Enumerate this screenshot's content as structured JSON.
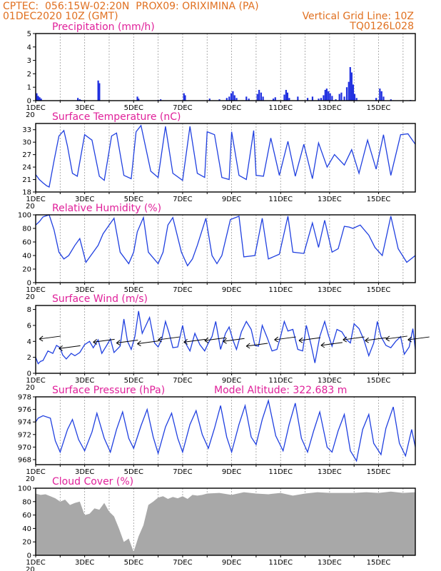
{
  "header": {
    "line1_left": "CPTEC:  056:15W-02:20N  PROX09: ORIXIMINA (PA)",
    "line2_left": "01DEC2020 10Z (GMT)",
    "line2_right": "Vertical Grid Line: 10Z",
    "line3_right": "TQ0126L028"
  },
  "colors": {
    "title": "#e0209a",
    "header": "#e07020",
    "series": "#2040e0",
    "cloud": "#a8a8a8"
  },
  "x_axis": {
    "day_labels": [
      "1DEC",
      "3DEC",
      "5DEC",
      "7DEC",
      "9DEC",
      "11DEC",
      "13DEC",
      "15DEC"
    ],
    "year_fragment": "20",
    "range_days": [
      0,
      15.5
    ]
  },
  "chart_data": [
    {
      "type": "bar",
      "title": "Precipitation  (mm/h)",
      "ylim": [
        0,
        5
      ],
      "yticks": [
        "0",
        "1",
        "2",
        "3",
        "4",
        "5"
      ],
      "bars": [
        [
          0.04,
          0.55
        ],
        [
          0.1,
          0.35
        ],
        [
          0.16,
          0.25
        ],
        [
          0.22,
          0.15
        ],
        [
          1.72,
          0.2
        ],
        [
          1.8,
          0.1
        ],
        [
          1.85,
          0.05
        ],
        [
          2.55,
          1.5
        ],
        [
          2.6,
          1.3
        ],
        [
          4.15,
          0.3
        ],
        [
          4.2,
          0.15
        ],
        [
          5.0,
          0.05
        ],
        [
          5.1,
          0.1
        ],
        [
          6.05,
          0.55
        ],
        [
          6.1,
          0.4
        ],
        [
          7.1,
          0.15
        ],
        [
          7.5,
          0.1
        ],
        [
          7.8,
          0.2
        ],
        [
          7.9,
          0.3
        ],
        [
          7.98,
          0.55
        ],
        [
          8.05,
          0.7
        ],
        [
          8.12,
          0.4
        ],
        [
          8.2,
          0.2
        ],
        [
          8.6,
          0.3
        ],
        [
          8.7,
          0.15
        ],
        [
          9.05,
          0.5
        ],
        [
          9.12,
          0.8
        ],
        [
          9.2,
          0.6
        ],
        [
          9.28,
          0.3
        ],
        [
          9.7,
          0.15
        ],
        [
          9.78,
          0.25
        ],
        [
          10.15,
          0.45
        ],
        [
          10.22,
          0.8
        ],
        [
          10.28,
          0.6
        ],
        [
          10.35,
          0.2
        ],
        [
          10.7,
          0.3
        ],
        [
          11.1,
          0.2
        ],
        [
          11.3,
          0.3
        ],
        [
          11.55,
          0.15
        ],
        [
          11.65,
          0.2
        ],
        [
          11.75,
          0.4
        ],
        [
          11.82,
          0.8
        ],
        [
          11.88,
          0.9
        ],
        [
          11.95,
          0.7
        ],
        [
          12.02,
          0.55
        ],
        [
          12.1,
          0.35
        ],
        [
          12.25,
          0.1
        ],
        [
          12.4,
          0.5
        ],
        [
          12.48,
          0.6
        ],
        [
          12.6,
          0.3
        ],
        [
          12.7,
          1.0
        ],
        [
          12.78,
          1.4
        ],
        [
          12.84,
          2.5
        ],
        [
          12.9,
          2.1
        ],
        [
          12.96,
          1.2
        ],
        [
          13.02,
          0.5
        ],
        [
          13.1,
          0.2
        ],
        [
          13.9,
          0.2
        ],
        [
          14.05,
          0.9
        ],
        [
          14.12,
          0.7
        ],
        [
          14.2,
          0.3
        ],
        [
          14.5,
          0.1
        ],
        [
          15.3,
          0.05
        ]
      ]
    },
    {
      "type": "line",
      "title": "Surface Temperature (nC)",
      "ylim": [
        18,
        34.5
      ],
      "yticks": [
        "18",
        "21",
        "24",
        "27",
        "30",
        "33"
      ],
      "x": [
        0.0,
        0.15,
        0.3,
        0.45,
        0.55,
        0.75,
        0.95,
        1.15,
        1.3,
        1.5,
        1.7,
        2.0,
        2.3,
        2.6,
        2.8,
        3.1,
        3.3,
        3.6,
        3.9,
        4.1,
        4.3,
        4.7,
        5.0,
        5.3,
        5.6,
        6.0,
        6.3,
        6.6,
        6.9,
        7.0,
        7.3,
        7.6,
        7.9,
        8.0,
        8.3,
        8.6,
        8.9,
        9.0,
        9.3,
        9.6,
        9.95,
        10.3,
        10.6,
        10.95,
        11.3,
        11.55,
        11.9,
        12.2,
        12.6,
        12.9,
        13.2,
        13.55,
        13.9,
        14.2,
        14.5,
        14.9,
        15.2,
        15.5
      ],
      "y": [
        22.2,
        21.0,
        20.2,
        19.5,
        19.2,
        25.5,
        31.5,
        32.8,
        29.0,
        22.5,
        21.8,
        31.8,
        30.5,
        21.8,
        20.8,
        31.5,
        32.2,
        22.0,
        21.2,
        32.5,
        34.0,
        23.0,
        21.5,
        33.8,
        22.5,
        20.8,
        33.8,
        22.5,
        21.5,
        32.5,
        31.8,
        21.5,
        21.0,
        32.5,
        22.0,
        21.0,
        32.8,
        22.0,
        21.8,
        31.0,
        22.0,
        30.2,
        21.8,
        29.5,
        21.2,
        29.8,
        24.0,
        27.0,
        24.5,
        28.2,
        22.5,
        30.5,
        23.5,
        31.8,
        22.0,
        31.8,
        32.0,
        29.5
      ]
    },
    {
      "type": "line",
      "title": "Relative Humidity (%)",
      "ylim": [
        0,
        100
      ],
      "yticks": [
        "0",
        "20",
        "40",
        "60",
        "80",
        "100"
      ],
      "x": [
        0.0,
        0.15,
        0.3,
        0.55,
        0.75,
        0.95,
        1.15,
        1.35,
        1.6,
        1.8,
        2.05,
        2.35,
        2.55,
        2.75,
        3.0,
        3.2,
        3.45,
        3.8,
        4.0,
        4.15,
        4.4,
        4.6,
        5.0,
        5.2,
        5.4,
        5.6,
        5.95,
        6.2,
        6.4,
        6.6,
        6.95,
        7.2,
        7.4,
        7.6,
        7.95,
        8.3,
        8.5,
        8.95,
        9.25,
        9.5,
        9.95,
        10.3,
        10.5,
        10.95,
        11.3,
        11.55,
        11.8,
        12.1,
        12.35,
        12.6,
        12.8,
        12.95,
        13.25,
        13.6,
        13.85,
        14.15,
        14.5,
        14.8,
        15.15,
        15.5
      ],
      "y": [
        85,
        90,
        97,
        100,
        78,
        45,
        35,
        40,
        55,
        65,
        30,
        45,
        55,
        72,
        85,
        95,
        45,
        28,
        45,
        75,
        96,
        45,
        28,
        45,
        85,
        96,
        45,
        25,
        35,
        55,
        95,
        40,
        28,
        40,
        93,
        98,
        38,
        40,
        95,
        35,
        42,
        98,
        45,
        43,
        88,
        52,
        92,
        45,
        50,
        83,
        82,
        80,
        85,
        70,
        52,
        40,
        98,
        50,
        30,
        40
      ]
    },
    {
      "type": "line",
      "title": "Surface Wind (m/s)",
      "ylim": [
        0,
        8.5
      ],
      "yticks": [
        "0",
        "2",
        "4",
        "6",
        "8"
      ],
      "x": [
        0.0,
        0.1,
        0.2,
        0.3,
        0.5,
        0.7,
        0.85,
        1.0,
        1.1,
        1.25,
        1.45,
        1.6,
        1.8,
        2.0,
        2.2,
        2.35,
        2.55,
        2.7,
        2.9,
        3.05,
        3.2,
        3.45,
        3.6,
        3.75,
        3.9,
        4.05,
        4.2,
        4.35,
        4.5,
        4.65,
        4.85,
        5.0,
        5.15,
        5.3,
        5.45,
        5.6,
        5.8,
        6.0,
        6.15,
        6.3,
        6.5,
        6.7,
        6.9,
        7.05,
        7.2,
        7.35,
        7.55,
        7.75,
        7.9,
        8.05,
        8.2,
        8.4,
        8.6,
        8.8,
        8.95,
        9.1,
        9.25,
        9.45,
        9.65,
        9.85,
        10.0,
        10.15,
        10.3,
        10.5,
        10.7,
        10.9,
        11.05,
        11.25,
        11.4,
        11.6,
        11.8,
        11.95,
        12.1,
        12.3,
        12.5,
        12.7,
        12.85,
        13.0,
        13.2,
        13.4,
        13.6,
        13.8,
        13.95,
        14.1,
        14.3,
        14.5,
        14.7,
        14.9,
        15.05,
        15.25,
        15.4,
        15.5
      ],
      "y": [
        2.0,
        1.2,
        1.5,
        1.6,
        2.8,
        2.5,
        3.5,
        3.2,
        2.3,
        1.8,
        2.5,
        2.2,
        2.6,
        3.6,
        4.0,
        3.2,
        4.2,
        2.5,
        3.5,
        4.3,
        2.6,
        3.4,
        6.8,
        4.0,
        3.0,
        4.6,
        7.8,
        5.0,
        6.0,
        7.0,
        3.8,
        3.3,
        4.3,
        6.5,
        5.0,
        3.2,
        3.3,
        6.0,
        3.6,
        2.8,
        5.0,
        3.6,
        2.8,
        3.8,
        4.6,
        6.5,
        3.0,
        5.0,
        5.8,
        4.2,
        3.0,
        5.2,
        6.5,
        5.5,
        3.5,
        3.4,
        6.0,
        4.5,
        2.8,
        3.0,
        4.6,
        6.5,
        5.3,
        5.5,
        3.0,
        2.8,
        6.0,
        3.5,
        1.3,
        4.6,
        6.5,
        4.8,
        3.4,
        5.5,
        5.2,
        4.2,
        3.8,
        6.2,
        5.6,
        4.2,
        2.2,
        3.8,
        6.5,
        4.6,
        3.5,
        3.2,
        4.0,
        4.6,
        2.4,
        3.3,
        5.6,
        3.0
      ],
      "vectors": [
        [
          0.15,
          4.3
        ],
        [
          0.95,
          3.1
        ],
        [
          2.35,
          3.9
        ],
        [
          3.3,
          3.8
        ],
        [
          4.15,
          3.7
        ],
        [
          5.0,
          4.2
        ],
        [
          6.05,
          3.9
        ],
        [
          6.9,
          4.1
        ],
        [
          7.65,
          4.0
        ],
        [
          8.6,
          3.4
        ],
        [
          9.75,
          4.2
        ],
        [
          10.75,
          4.1
        ],
        [
          11.65,
          3.5
        ],
        [
          12.55,
          4.2
        ],
        [
          13.45,
          4.1
        ],
        [
          14.3,
          4.3
        ],
        [
          15.2,
          4.2
        ]
      ]
    },
    {
      "type": "line",
      "title": "Surface Pressure (hPa)",
      "annotation": "Model Altitude: 322.683  m",
      "ylim": [
        967.2,
        978
      ],
      "yticks": [
        "968",
        "970",
        "972",
        "974",
        "976",
        "978"
      ],
      "x": [
        0.0,
        0.1,
        0.3,
        0.6,
        0.8,
        1.0,
        1.3,
        1.5,
        1.75,
        2.0,
        2.3,
        2.5,
        2.8,
        3.05,
        3.3,
        3.55,
        3.8,
        4.0,
        4.3,
        4.55,
        4.8,
        5.0,
        5.3,
        5.55,
        5.8,
        6.0,
        6.3,
        6.55,
        6.8,
        7.05,
        7.3,
        7.55,
        7.8,
        8.0,
        8.3,
        8.55,
        8.8,
        9.0,
        9.25,
        9.5,
        9.8,
        10.1,
        10.35,
        10.6,
        10.85,
        11.1,
        11.35,
        11.6,
        11.9,
        12.1,
        12.35,
        12.6,
        12.85,
        13.1,
        13.35,
        13.6,
        13.8,
        14.1,
        14.3,
        14.6,
        14.85,
        15.1,
        15.35,
        15.5
      ],
      "y": [
        974.0,
        974.6,
        975.0,
        974.6,
        971.0,
        969.2,
        972.8,
        974.4,
        971.2,
        969.4,
        972.4,
        975.4,
        971.4,
        969.2,
        972.8,
        975.6,
        971.4,
        969.8,
        973.4,
        976.0,
        971.6,
        969.0,
        973.2,
        975.4,
        971.4,
        969.2,
        973.6,
        975.8,
        972.0,
        969.8,
        973.0,
        976.6,
        971.6,
        969.2,
        973.6,
        976.6,
        971.6,
        970.4,
        974.4,
        977.4,
        971.8,
        969.4,
        973.6,
        977.0,
        971.4,
        969.2,
        972.6,
        975.6,
        970.0,
        969.2,
        972.6,
        975.2,
        969.4,
        967.8,
        972.8,
        975.2,
        970.6,
        968.8,
        973.0,
        976.4,
        970.6,
        968.6,
        972.8,
        970.0
      ]
    },
    {
      "type": "area",
      "title": "Cloud Cover (%)",
      "ylim": [
        0,
        100
      ],
      "yticks": [
        "0",
        "20",
        "40",
        "60",
        "80",
        "100"
      ],
      "x": [
        0.0,
        0.2,
        0.4,
        0.6,
        0.8,
        1.0,
        1.2,
        1.4,
        1.6,
        1.8,
        2.0,
        2.2,
        2.4,
        2.6,
        2.8,
        3.0,
        3.2,
        3.4,
        3.6,
        3.8,
        4.0,
        4.2,
        4.4,
        4.6,
        4.8,
        5.0,
        5.2,
        5.4,
        5.6,
        5.8,
        6.0,
        6.2,
        6.4,
        6.6,
        6.8,
        7.0,
        7.5,
        8.0,
        8.5,
        9.0,
        9.5,
        10.0,
        10.5,
        11.0,
        11.5,
        12.0,
        12.5,
        13.0,
        13.5,
        14.0,
        14.5,
        15.0,
        15.5
      ],
      "y": [
        92,
        90,
        91,
        88,
        85,
        80,
        83,
        75,
        78,
        80,
        60,
        62,
        70,
        68,
        78,
        65,
        58,
        40,
        20,
        25,
        5,
        28,
        45,
        75,
        80,
        86,
        88,
        84,
        87,
        85,
        88,
        84,
        90,
        89,
        90,
        92,
        93,
        90,
        94,
        92,
        91,
        93,
        89,
        92,
        94,
        93,
        93,
        93,
        94,
        93,
        95,
        93,
        94
      ]
    }
  ]
}
